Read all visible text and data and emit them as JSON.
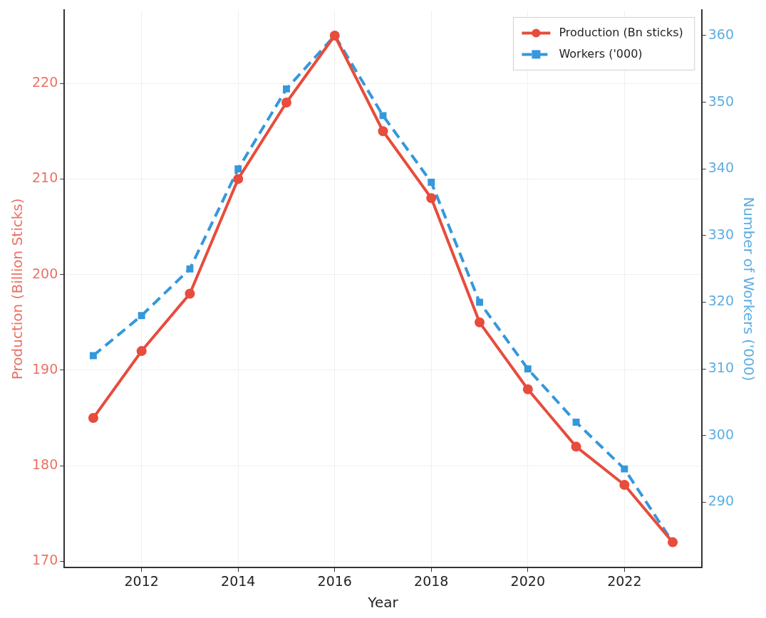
{
  "chart_data": {
    "type": "line",
    "x": [
      2011,
      2012,
      2013,
      2014,
      2015,
      2016,
      2017,
      2018,
      2019,
      2020,
      2021,
      2022,
      2023
    ],
    "series": [
      {
        "name": "Production (Bn sticks)",
        "color": "#e74c3c",
        "marker": "circle",
        "line_style": "solid",
        "values": [
          185,
          192,
          198,
          210,
          218,
          225,
          215,
          208,
          195,
          188,
          182,
          178,
          172
        ]
      },
      {
        "name": "Workers ('000)",
        "color": "#3498db",
        "marker": "square",
        "line_style": "dashed",
        "axis": "y2",
        "values": [
          312,
          318,
          325,
          340,
          352,
          360,
          348,
          338,
          320,
          310,
          302,
          295,
          284
        ]
      }
    ],
    "xlabel": "Year",
    "ylabel": "Production (Billion Sticks)",
    "y2label": "Number of Workers ('000)",
    "xlim": [
      2010.4,
      2023.6
    ],
    "xticks": [
      2012,
      2014,
      2016,
      2018,
      2020,
      2022
    ],
    "ylim": [
      169.35,
      227.65
    ],
    "yticks": [
      170,
      180,
      190,
      200,
      210,
      220
    ],
    "y2lim": [
      280.2,
      363.8
    ],
    "y2ticks": [
      290,
      300,
      310,
      320,
      330,
      340,
      350,
      360
    ],
    "grid": true,
    "legend": "top right"
  }
}
